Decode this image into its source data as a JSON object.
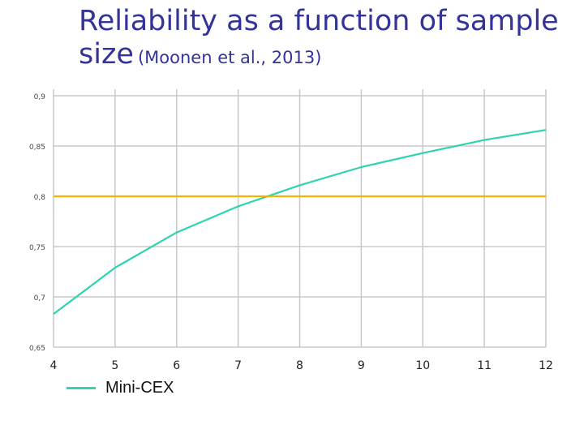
{
  "slide": {
    "title_main": "Reliability as a function of sample size",
    "title_sub": "(Moonen et al., 2013)"
  },
  "legend": {
    "label": "Mini-CEX"
  },
  "chart_data": {
    "type": "line",
    "title": "",
    "xlabel": "",
    "ylabel": "",
    "x": [
      4,
      5,
      6,
      7,
      8,
      9,
      10,
      11,
      12
    ],
    "xlim": [
      4,
      12
    ],
    "ylim": [
      0.65,
      0.9
    ],
    "y_ticks": [
      "0,65",
      "0,7",
      "0,75",
      "0,8",
      "0,85",
      "0,9"
    ],
    "x_ticks": [
      "4",
      "5",
      "6",
      "7",
      "8",
      "9",
      "10",
      "11",
      "12"
    ],
    "grid": true,
    "legend_position": "bottom-left",
    "series": [
      {
        "name": "Mini-CEX",
        "color": "#2ed3b0",
        "values": [
          0.683,
          0.729,
          0.764,
          0.79,
          0.811,
          0.829,
          0.843,
          0.856,
          0.866
        ]
      },
      {
        "color": "#f5b400",
        "values": [
          0.8,
          0.8,
          0.8,
          0.8,
          0.8,
          0.8,
          0.8,
          0.8,
          0.8
        ]
      }
    ]
  }
}
